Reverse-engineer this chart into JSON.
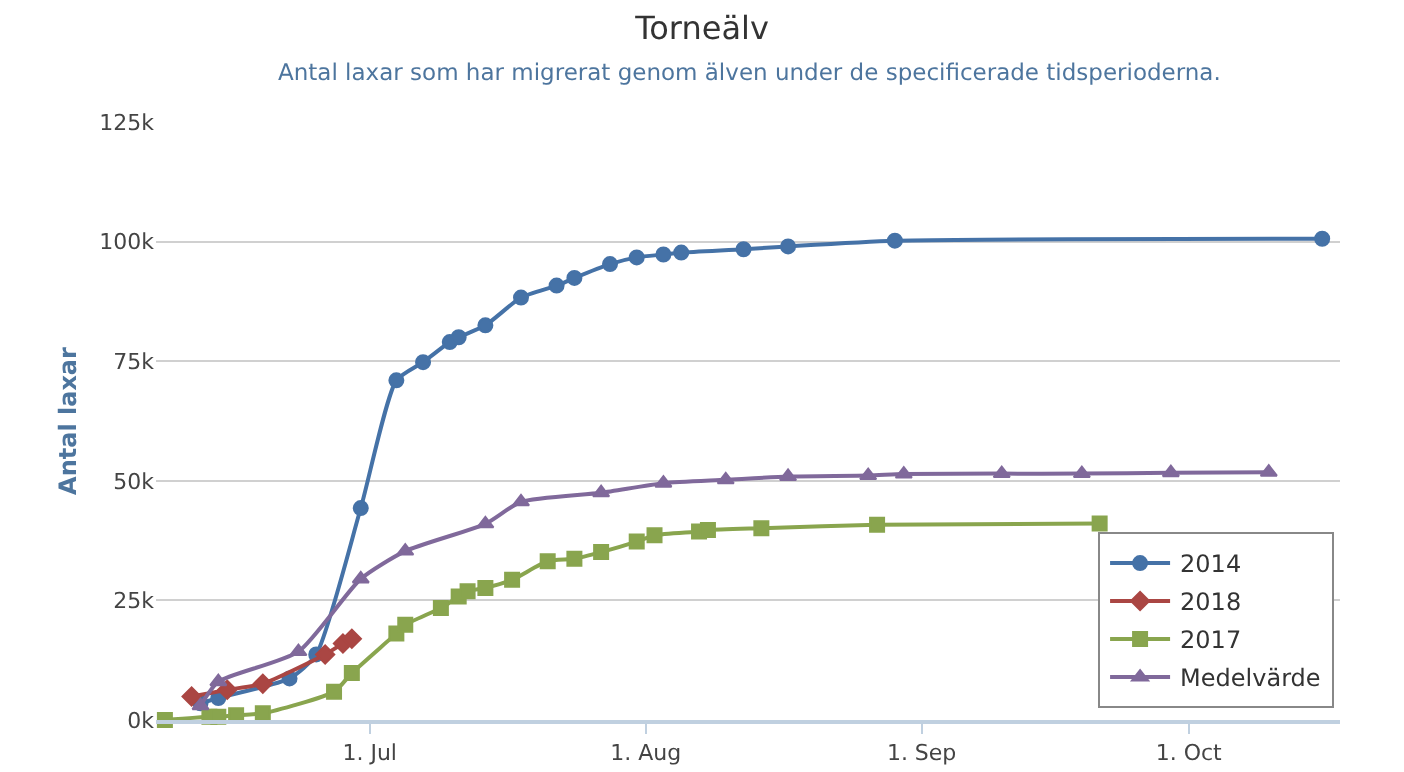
{
  "chart_data": {
    "type": "line",
    "title": "Torneälv",
    "subtitle": "Antal laxar som har migrerat genom älven under de specificerade tidsperioderna.",
    "ylabel": "Antal laxar",
    "xlim": [
      "--06-07",
      "--10-18"
    ],
    "xticks": [
      {
        "value": "--07-01",
        "label": "1. Jul"
      },
      {
        "value": "--08-01",
        "label": "1. Aug"
      },
      {
        "value": "--09-01",
        "label": "1. Sep"
      },
      {
        "value": "--10-01",
        "label": "1. Oct"
      }
    ],
    "ylim": [
      0,
      125000
    ],
    "yticks": [
      {
        "value": 0,
        "label": "0k"
      },
      {
        "value": 25000,
        "label": "25k"
      },
      {
        "value": 50000,
        "label": "50k"
      },
      {
        "value": 75000,
        "label": "75k"
      },
      {
        "value": 100000,
        "label": "100k"
      },
      {
        "value": 125000,
        "label": "125k"
      }
    ],
    "grid": "y",
    "legend": "bottom right",
    "series": [
      {
        "name": "2014",
        "color": "#4572a7",
        "marker": "circle",
        "x": [
          "--06-12",
          "--06-14",
          "--06-22",
          "--06-25",
          "--06-30",
          "--07-04",
          "--07-07",
          "--07-10",
          "--07-11",
          "--07-14",
          "--07-18",
          "--07-22",
          "--07-24",
          "--07-28",
          "--07-31",
          "--08-03",
          "--08-05",
          "--08-12",
          "--08-17",
          "--08-29",
          "--10-16"
        ],
        "values": [
          3500,
          4600,
          8700,
          13700,
          44300,
          71000,
          74800,
          79000,
          80000,
          82500,
          88300,
          90800,
          92400,
          95300,
          96700,
          97300,
          97700,
          98400,
          99000,
          100200,
          100600
        ]
      },
      {
        "name": "2018",
        "color": "#aa4643",
        "marker": "diamond",
        "x": [
          "--06-11",
          "--06-15",
          "--06-19",
          "--06-26",
          "--06-28",
          "--06-29"
        ],
        "values": [
          4900,
          6300,
          7600,
          13700,
          16000,
          17000
        ]
      },
      {
        "name": "2017",
        "color": "#89a54e",
        "marker": "square",
        "x": [
          "--06-08",
          "--06-13",
          "--06-14",
          "--06-16",
          "--06-19",
          "--06-27",
          "--06-29",
          "--07-04",
          "--07-05",
          "--07-09",
          "--07-11",
          "--07-12",
          "--07-14",
          "--07-17",
          "--07-21",
          "--07-24",
          "--07-27",
          "--07-31",
          "--08-02",
          "--08-07",
          "--08-08",
          "--08-14",
          "--08-27",
          "--09-21"
        ],
        "values": [
          0,
          700,
          700,
          1000,
          1400,
          5900,
          9800,
          18100,
          19900,
          23400,
          25800,
          26900,
          27600,
          29300,
          33200,
          33700,
          35100,
          37300,
          38600,
          39400,
          39700,
          40100,
          40800,
          41100
        ]
      },
      {
        "name": "Medelvärde",
        "color": "#80699b",
        "marker": "triangle",
        "x": [
          "--06-12",
          "--06-14",
          "--06-23",
          "--06-30",
          "--07-05",
          "--07-14",
          "--07-18",
          "--07-27",
          "--08-03",
          "--08-10",
          "--08-17",
          "--08-26",
          "--08-30",
          "--09-10",
          "--09-19",
          "--09-29",
          "--10-10"
        ],
        "values": [
          3000,
          8000,
          14300,
          29500,
          35300,
          41000,
          45600,
          47500,
          49500,
          50200,
          50900,
          51100,
          51400,
          51500,
          51500,
          51700,
          51800
        ]
      }
    ]
  }
}
